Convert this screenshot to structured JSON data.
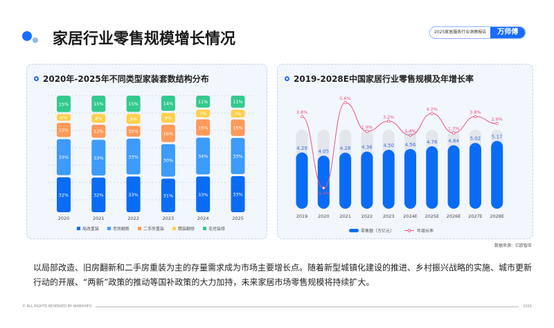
{
  "header": {
    "title": "家居行业零售规模增长情况",
    "report": "2025家居服务行业洞察报告",
    "brand": "万师傅"
  },
  "colors": {
    "accent": "#1a6cff"
  },
  "chart_data": [
    {
      "type": "bar",
      "stacked": true,
      "title": "2020年-2025年不同类型家装套数结构分布",
      "categories": [
        "2020",
        "2021",
        "2022",
        "2023",
        "2024",
        "2025"
      ],
      "series": [
        {
          "name": "局改重装",
          "color": "#0a6cf5",
          "values": [
            32,
            32,
            33,
            31,
            33,
            33
          ]
        },
        {
          "name": "老房翻新",
          "color": "#3d9bfb",
          "values": [
            33,
            33,
            33,
            30,
            34,
            33
          ]
        },
        {
          "name": "二手房重装",
          "color": "#ff9a5a",
          "values": [
            13,
            12,
            10,
            16,
            15,
            15
          ]
        },
        {
          "name": "精装翻修",
          "color": "#ffd04a",
          "values": [
            6,
            8,
            9,
            9,
            7,
            7
          ]
        },
        {
          "name": "毛坯装修",
          "color": "#34c98e",
          "values": [
            15,
            15,
            15,
            14,
            11,
            11
          ]
        }
      ],
      "unit": "%",
      "legend": "bottom"
    },
    {
      "type": "bar+line",
      "title": "2019-2028E中国家居行业零售规模及年增长率",
      "categories": [
        "2019",
        "2020",
        "2021",
        "2022",
        "2023",
        "2024E",
        "2025E",
        "2026E",
        "2027E",
        "2028E"
      ],
      "series": [
        {
          "name": "零售额（万亿元）",
          "type": "bar",
          "color": "#0a6cf5",
          "values": [
            4.29,
            4.05,
            4.28,
            4.36,
            4.5,
            4.56,
            4.76,
            4.84,
            5.02,
            5.17
          ]
        },
        {
          "name": "年增长率",
          "type": "line",
          "color": "#f0507a",
          "values": [
            3.8,
            -5.4,
            5.6,
            1.9,
            3.2,
            1.4,
            4.2,
            1.7,
            3.8,
            2.9
          ],
          "unit": "%"
        }
      ],
      "legend": "bottom",
      "source": "数据来源：亿欧智库"
    }
  ],
  "paragraph": "以局部改造、旧房翻新和二手房重装为主的存量需求成为市场主要增长点。随着新型城镇化建设的推进、乡村振兴战略的实施、城市更新行动的开展、“两新”政策的推动等国补政策的大力加持，未来家居市场零售规模将持续扩大。",
  "footer": {
    "copyright": "© ALL RIGHTS RESERVED BY WANSHIFU",
    "year": "2026"
  }
}
